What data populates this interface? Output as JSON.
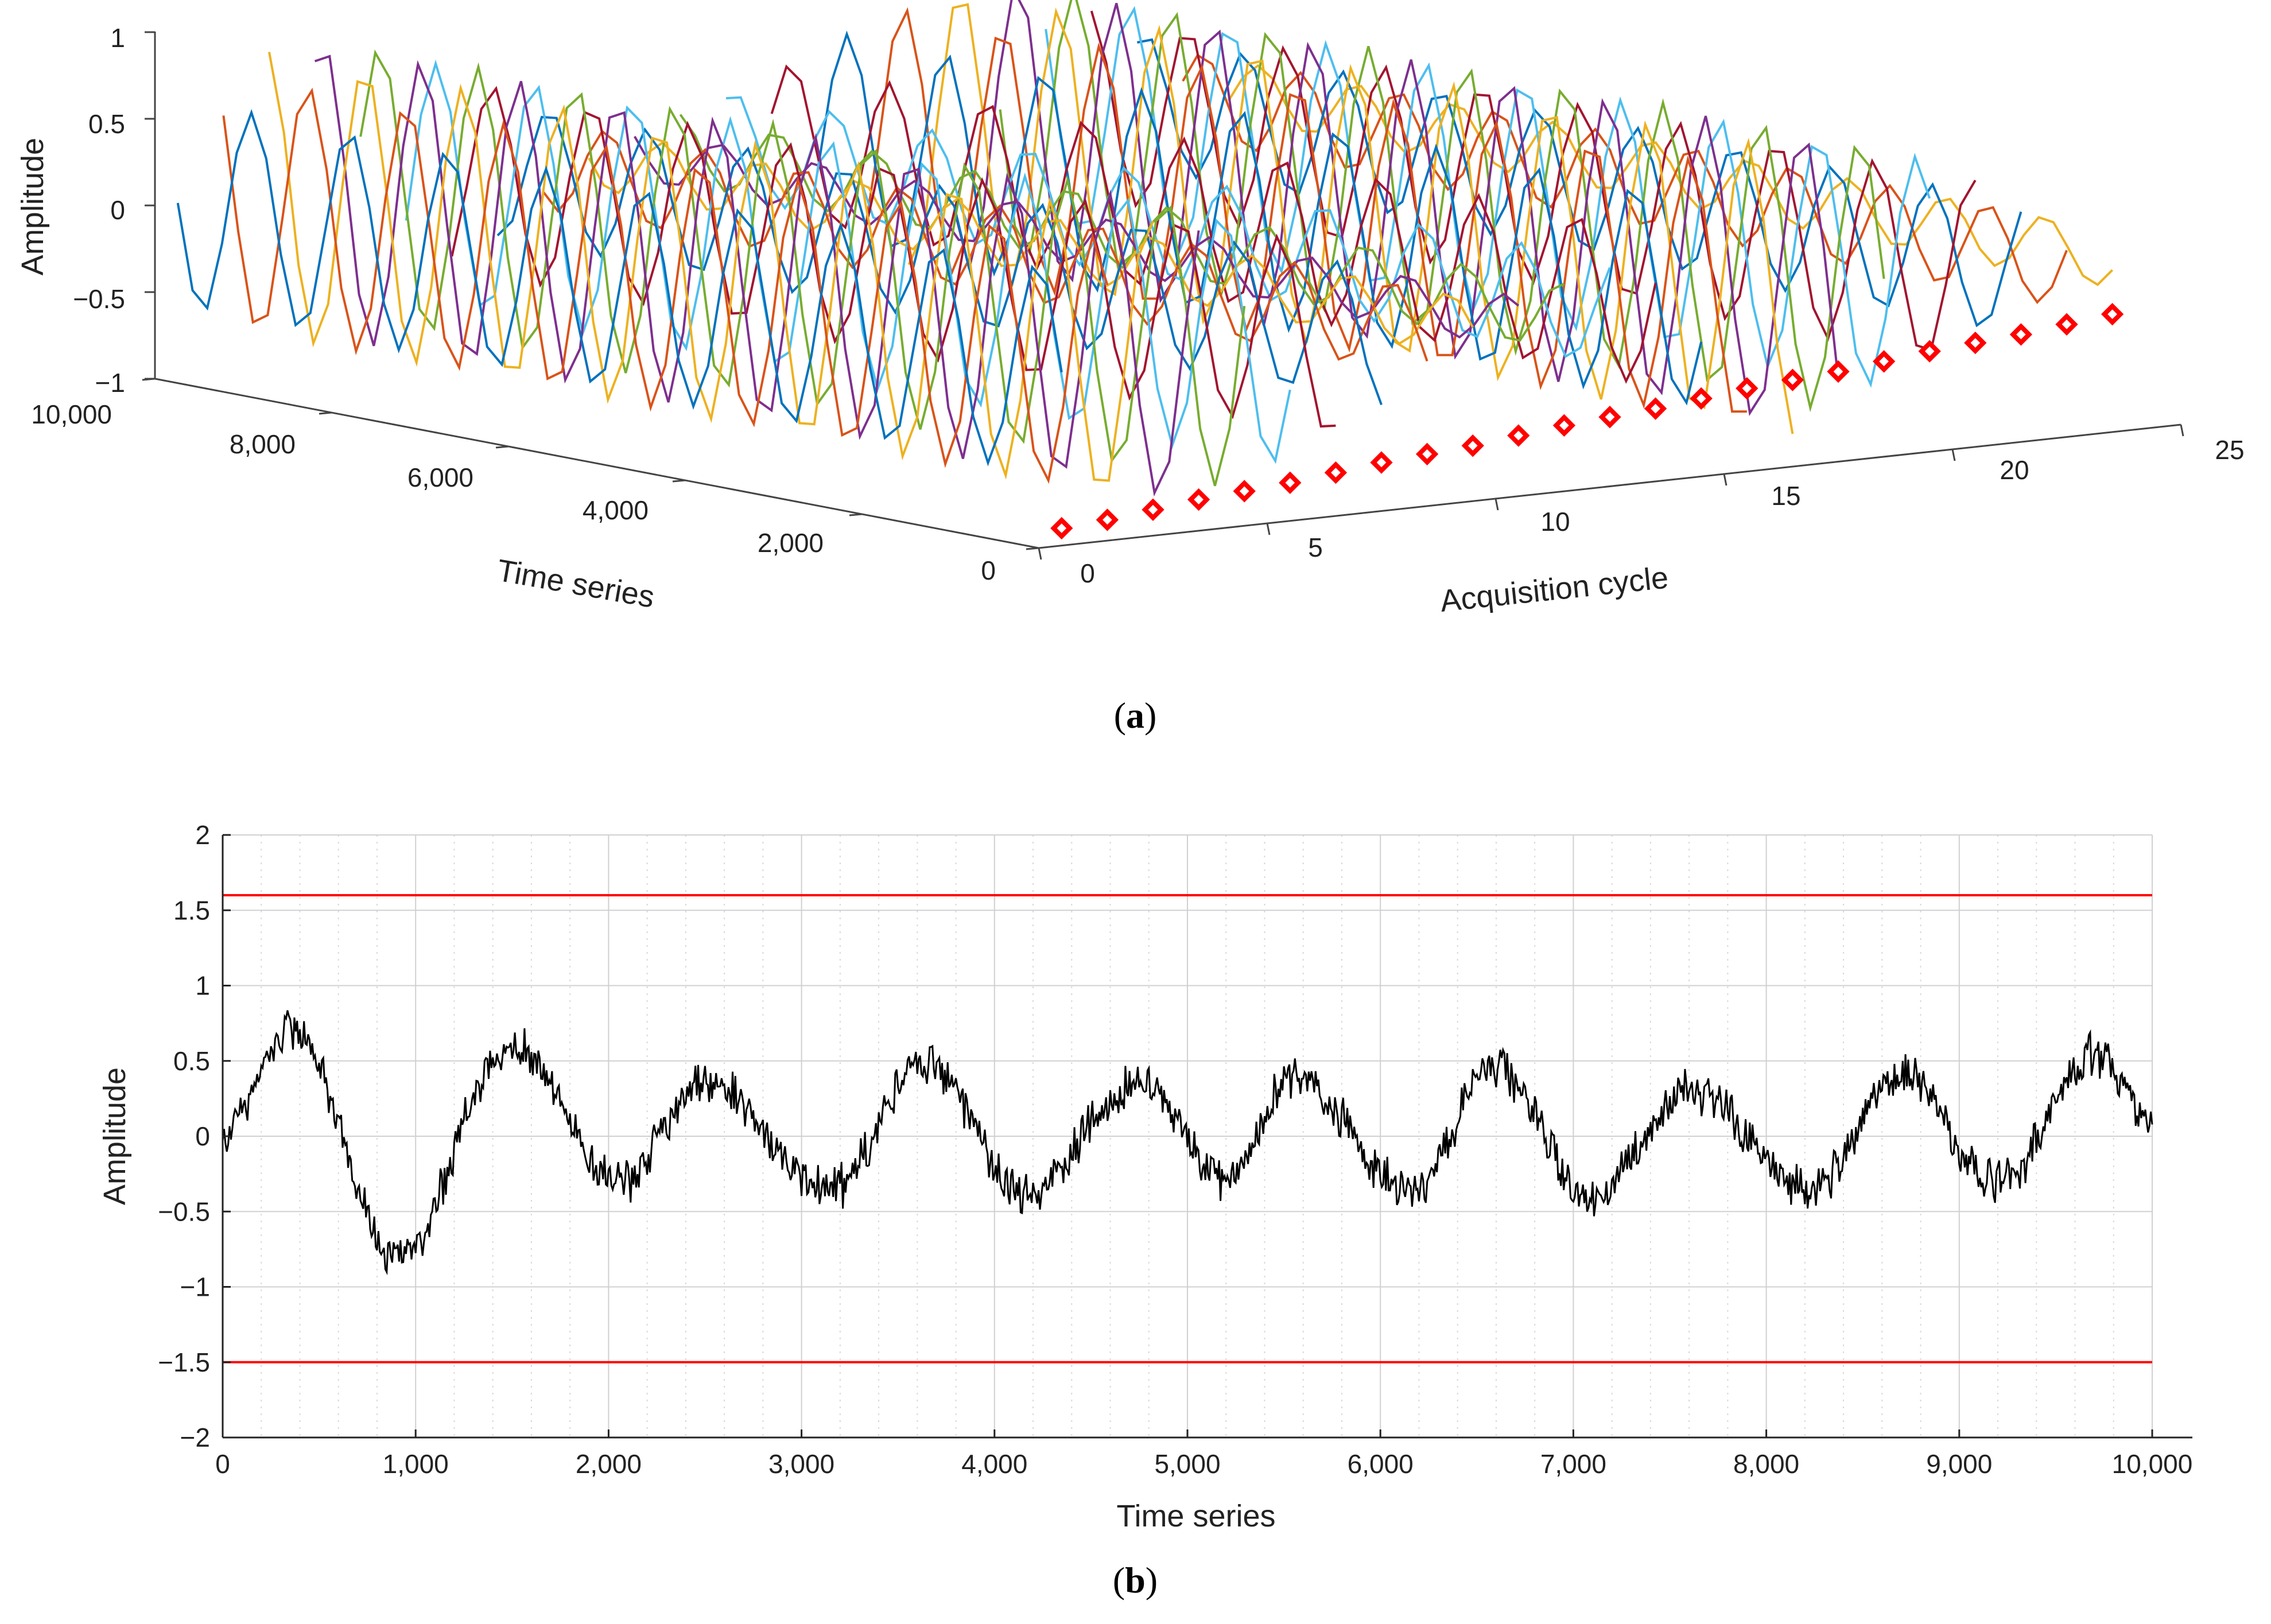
{
  "chart_data": [
    {
      "type": "line",
      "panel": "a",
      "caption_label": "a",
      "projection": "3d",
      "title": "",
      "xlabel": "Acquisition cycle",
      "ylabel": "Time series",
      "zlabel": "Amplitude",
      "xlim": [
        0,
        25
      ],
      "ylim": [
        0,
        10000
      ],
      "zlim": [
        -1,
        1
      ],
      "x_ticks": [
        "0",
        "5",
        "10",
        "15",
        "20",
        "25"
      ],
      "y_ticks": [
        "0",
        "2,000",
        "4,000",
        "6,000",
        "8,000",
        "10,000"
      ],
      "z_ticks": [
        "−1",
        "−0.5",
        "0",
        "0.5",
        "1"
      ],
      "n_cycles": 24,
      "waveform": {
        "shape": "sinusoid",
        "amplitude_range": [
          0.4,
          0.9
        ],
        "periods_over_series": 9
      },
      "series_colors": [
        "#0072BD",
        "#D95319",
        "#EDB120",
        "#7E2F8E",
        "#77AC30",
        "#4DBEEE",
        "#A2142F"
      ],
      "marker": {
        "shape": "diamond",
        "color": "#FF0000",
        "meaning": "per-cycle marked point"
      },
      "marker_values": [
        -0.9,
        -0.88,
        -0.85,
        -0.82,
        -0.8,
        -0.78,
        -0.75,
        -0.72,
        -0.7,
        -0.68,
        -0.65,
        -0.62,
        -0.6,
        -0.58,
        -0.55,
        -0.52,
        -0.5,
        -0.48,
        -0.45,
        -0.42,
        -0.4,
        -0.38,
        -0.35,
        -0.32
      ]
    },
    {
      "type": "line",
      "panel": "b",
      "caption_label": "b",
      "title": "",
      "xlabel": "Time series",
      "ylabel": "Amplitude",
      "xlim": [
        0,
        10000
      ],
      "ylim": [
        -2,
        2
      ],
      "grid": true,
      "x_ticks": [
        "0",
        "1,000",
        "2,000",
        "3,000",
        "4,000",
        "5,000",
        "6,000",
        "7,000",
        "8,000",
        "9,000",
        "10,000"
      ],
      "y_ticks": [
        "−2",
        "−1.5",
        "−1",
        "−0.5",
        "0",
        "0.5",
        "1",
        "1.5",
        "2"
      ],
      "series": [
        {
          "name": "signal",
          "color": "#000000",
          "x": [
            0,
            350,
            900,
            1500,
            2050,
            2500,
            3150,
            3650,
            4150,
            4750,
            5200,
            5550,
            6150,
            6600,
            7100,
            7600,
            8250,
            8700,
            9200,
            9700,
            10000
          ],
          "y": [
            0,
            0.72,
            -0.8,
            0.6,
            -0.3,
            0.35,
            -0.35,
            0.5,
            -0.38,
            0.35,
            -0.28,
            0.38,
            -0.35,
            0.45,
            -0.4,
            0.3,
            -0.35,
            0.4,
            -0.32,
            0.55,
            0.1
          ],
          "noise_amplitude": 0.12
        }
      ],
      "thresholds": [
        {
          "name": "upper limit",
          "value": 1.6,
          "color": "#FF0000"
        },
        {
          "name": "lower limit",
          "value": -1.5,
          "color": "#FF0000"
        }
      ]
    }
  ]
}
